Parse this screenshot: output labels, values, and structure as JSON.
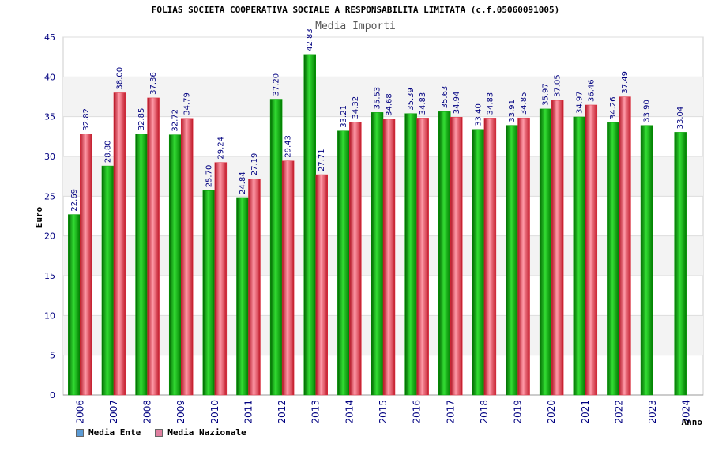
{
  "colors": {
    "ente_legend": "#5b9bd5",
    "nazionale_legend": "#e080a0",
    "ente_bar": "#00a000",
    "nazionale_bar": "#e03040"
  },
  "legend": {
    "ente": "Media Ente",
    "nazionale": "Media Nazionale"
  },
  "chart_data": {
    "type": "bar",
    "title": "FOLIAS SOCIETA COOPERATIVA SOCIALE A RESPONSABILITA LIMITATA (c.f.05060091005)",
    "subtitle": "Media Importi",
    "xlabel": "Anno",
    "ylabel": "Euro",
    "ylim": [
      0,
      45
    ],
    "yticks": [
      "0",
      "5",
      "10",
      "15",
      "20",
      "25",
      "30",
      "35",
      "40",
      "45"
    ],
    "grid": true,
    "legend_position": "bottom-left",
    "categories": [
      "2006",
      "2007",
      "2008",
      "2009",
      "2010",
      "2011",
      "2012",
      "2013",
      "2014",
      "2015",
      "2016",
      "2017",
      "2018",
      "2019",
      "2020",
      "2021",
      "2022",
      "2023",
      "2024"
    ],
    "series": [
      {
        "name": "Media Ente",
        "values": [
          22.69,
          28.8,
          32.85,
          32.72,
          25.7,
          24.84,
          37.2,
          42.83,
          33.21,
          35.53,
          35.39,
          35.63,
          33.4,
          33.91,
          35.97,
          34.97,
          34.26,
          33.9,
          33.04
        ],
        "labels": [
          "22.69",
          "28.80",
          "32.85",
          "32.72",
          "25.70",
          "24.84",
          "37.20",
          "42.83",
          "33.21",
          "35.53",
          "35.39",
          "35.63",
          "33.40",
          "33.91",
          "35.97",
          "34.97",
          "34.26",
          "33.90",
          "33.04"
        ]
      },
      {
        "name": "Media Nazionale",
        "values": [
          32.82,
          38.0,
          37.36,
          34.79,
          29.24,
          27.19,
          29.43,
          27.71,
          34.32,
          34.68,
          34.83,
          34.94,
          34.83,
          34.85,
          37.05,
          36.46,
          37.49,
          null,
          null
        ],
        "labels": [
          "32.82",
          "38.00",
          "37.36",
          "34.79",
          "29.24",
          "27.19",
          "29.43",
          "27.71",
          "34.32",
          "34.68",
          "34.83",
          "34.94",
          "34.83",
          "34.85",
          "37.05",
          "36.46",
          "37.49",
          "",
          ""
        ]
      }
    ]
  }
}
